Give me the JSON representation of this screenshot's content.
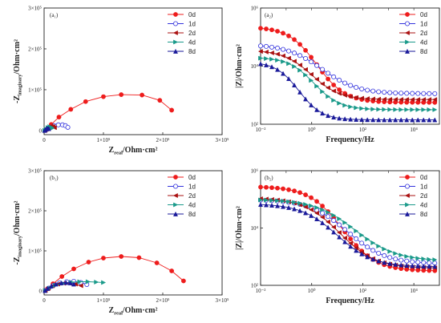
{
  "figure": {
    "series_colors": {
      "0d": "#ee1c1c",
      "1d": "#3333dd",
      "2d": "#aa1111",
      "4d": "#1a9a8a",
      "8d": "#1a1a9a"
    },
    "series_markers": {
      "0d": "circle-filled",
      "1d": "circle-open",
      "2d": "triangle-left",
      "4d": "triangle-right",
      "8d": "triangle-up"
    }
  },
  "chart_data": [
    {
      "id": "a1",
      "panel_label": "(a₁)",
      "type": "scatter",
      "kind": "nyquist",
      "xlabel_main": "Z",
      "xlabel_sub": "real",
      "xlabel_rest": "/Ohm·cm²",
      "ylabel_main": "-Z",
      "ylabel_sub": "imaginary",
      "ylabel_rest": "/Ohm·cm²",
      "xlim": [
        0,
        300000
      ],
      "ylim": [
        -10000,
        300000
      ],
      "xticks": [
        {
          "v": 0,
          "t": "0"
        },
        {
          "v": 100000,
          "t": "1×10⁵"
        },
        {
          "v": 200000,
          "t": "2×10⁵"
        },
        {
          "v": 300000,
          "t": "3×10⁵"
        }
      ],
      "yticks": [
        {
          "v": 0,
          "t": "0"
        },
        {
          "v": 100000,
          "t": "1×10⁵"
        },
        {
          "v": 200000,
          "t": "2×10⁵"
        },
        {
          "v": 300000,
          "t": "3×10⁵"
        }
      ],
      "legend": [
        "0d",
        "1d",
        "2d",
        "4d",
        "8d"
      ],
      "series": [
        {
          "name": "0d",
          "x": [
            1500,
            5000,
            12000,
            25000,
            45000,
            70000,
            100000,
            130000,
            165000,
            195000,
            215000
          ],
          "y": [
            800,
            4000,
            15000,
            33000,
            52000,
            71000,
            83000,
            88000,
            87000,
            74000,
            50000
          ]
        },
        {
          "name": "1d",
          "x": [
            2000,
            6000,
            11000,
            17000,
            24000,
            31000,
            36000,
            40000
          ],
          "y": [
            500,
            4000,
            8500,
            12000,
            14000,
            14000,
            12000,
            8000
          ]
        },
        {
          "name": "2d",
          "x": [
            1500,
            4000,
            8000,
            12000,
            15000,
            17500
          ],
          "y": [
            400,
            3500,
            8500,
            11000,
            10000,
            7000
          ]
        },
        {
          "name": "4d",
          "x": [
            1000,
            3500,
            6500,
            9500,
            12000,
            14000
          ],
          "y": [
            300,
            3500,
            7500,
            9500,
            8500,
            6000
          ]
        },
        {
          "name": "8d",
          "x": [
            800,
            2500,
            4500,
            6500,
            8000
          ],
          "y": [
            200,
            2500,
            5000,
            5500,
            4500
          ]
        }
      ]
    },
    {
      "id": "a2",
      "panel_label": "(a₂)",
      "type": "line",
      "kind": "bode",
      "xlabel": "Frequency/Hz",
      "ylabel": "|Z|/Ohm·cm²",
      "xscale": "log",
      "yscale": "log",
      "xlim_exp": [
        -2,
        5
      ],
      "ylim_exp": [
        2,
        6
      ],
      "xticks": [
        {
          "e": -2,
          "t": "10⁻²"
        },
        {
          "e": 0,
          "t": "10⁰"
        },
        {
          "e": 2,
          "t": "10²"
        },
        {
          "e": 4,
          "t": "10⁴"
        }
      ],
      "yticks": [
        {
          "e": 2,
          "t": "10²"
        },
        {
          "e": 4,
          "t": "10⁴"
        },
        {
          "e": 6,
          "t": "10⁶"
        }
      ],
      "legend": [
        "0d",
        "1d",
        "2d",
        "4d",
        "8d"
      ],
      "series": [
        {
          "name": "0d",
          "log_low": 5.35,
          "log_high": 2.75,
          "center": 0.2,
          "width": 0.55
        },
        {
          "name": "1d",
          "log_low": 4.75,
          "log_high": 3.05,
          "center": 0.4,
          "width": 0.7
        },
        {
          "name": "2d",
          "log_low": 4.55,
          "log_high": 2.85,
          "center": 0.0,
          "width": 0.55
        },
        {
          "name": "4d",
          "log_low": 4.3,
          "log_high": 2.5,
          "center": 0.1,
          "width": 0.5
        },
        {
          "name": "8d",
          "log_low": 4.15,
          "log_high": 2.15,
          "center": -0.5,
          "width": 0.45
        }
      ]
    },
    {
      "id": "b1",
      "panel_label": "(b₁)",
      "type": "scatter",
      "kind": "nyquist",
      "xlabel_main": "Z",
      "xlabel_sub": "real",
      "xlabel_rest": "/Ohm·cm²",
      "ylabel_main": "-Z",
      "ylabel_sub": "imaginary",
      "ylabel_rest": "/Ohm·cm²",
      "xlim": [
        0,
        300000
      ],
      "ylim": [
        -10000,
        300000
      ],
      "xticks": [
        {
          "v": 0,
          "t": "0"
        },
        {
          "v": 100000,
          "t": "1×10⁵"
        },
        {
          "v": 200000,
          "t": "2×10⁵"
        },
        {
          "v": 300000,
          "t": "3×10⁵"
        }
      ],
      "yticks": [
        {
          "v": 0,
          "t": "0"
        },
        {
          "v": 100000,
          "t": "1×10⁵"
        },
        {
          "v": 200000,
          "t": "2×10⁵"
        },
        {
          "v": 300000,
          "t": "3×10⁵"
        }
      ],
      "legend": [
        "0d",
        "1d",
        "2d",
        "4d",
        "8d"
      ],
      "series": [
        {
          "name": "0d",
          "x": [
            1500,
            6000,
            15000,
            30000,
            50000,
            75000,
            100000,
            130000,
            160000,
            190000,
            215000,
            235000
          ],
          "y": [
            1000,
            6000,
            18000,
            36000,
            55000,
            72000,
            82000,
            86000,
            83000,
            70000,
            50000,
            25000
          ]
        },
        {
          "name": "1d",
          "x": [
            2000,
            8000,
            16000,
            26000,
            38000,
            50000,
            62000,
            72000
          ],
          "y": [
            1000,
            7000,
            14000,
            20000,
            23000,
            24000,
            21000,
            16000
          ]
        },
        {
          "name": "2d",
          "x": [
            2000,
            7000,
            14000,
            23000,
            33000,
            43000,
            53000,
            62000
          ],
          "y": [
            1000,
            6500,
            12500,
            17000,
            19000,
            19000,
            17000,
            13000
          ]
        },
        {
          "name": "4d",
          "x": [
            2000,
            9000,
            19000,
            32000,
            46000,
            60000,
            74000,
            88000,
            100000
          ],
          "y": [
            1000,
            7000,
            14000,
            19000,
            22000,
            23000,
            23000,
            22000,
            21000
          ]
        },
        {
          "name": "8d",
          "x": [
            1500,
            6000,
            12000,
            20000,
            29000,
            37000,
            44000,
            50000
          ],
          "y": [
            1000,
            6000,
            12000,
            17000,
            20000,
            21000,
            20000,
            17000
          ]
        }
      ]
    },
    {
      "id": "b2",
      "panel_label": "(b₂)",
      "type": "line",
      "kind": "bode",
      "xlabel": "Frequency/Hz",
      "ylabel": "|Z|/Ohm·cm²",
      "xscale": "log",
      "yscale": "log",
      "xlim_exp": [
        -2,
        5
      ],
      "ylim_exp": [
        2,
        6
      ],
      "xticks": [
        {
          "e": -2,
          "t": "10⁻²"
        },
        {
          "e": 0,
          "t": "10⁰"
        },
        {
          "e": 2,
          "t": "10²"
        },
        {
          "e": 4,
          "t": "10⁴"
        }
      ],
      "yticks": [
        {
          "e": 2,
          "t": "10²"
        },
        {
          "e": 4,
          "t": "10⁴"
        },
        {
          "e": 6,
          "t": "10⁶"
        }
      ],
      "legend": [
        "0d",
        "1d",
        "2d",
        "4d",
        "8d"
      ],
      "series": [
        {
          "name": "0d",
          "log_low": 5.45,
          "log_high": 2.5,
          "center": 1.2,
          "width": 0.65
        },
        {
          "name": "1d",
          "log_low": 5.0,
          "log_high": 2.75,
          "center": 1.4,
          "width": 0.75
        },
        {
          "name": "2d",
          "log_low": 5.05,
          "log_high": 2.6,
          "center": 1.1,
          "width": 0.7
        },
        {
          "name": "4d",
          "log_low": 5.0,
          "log_high": 2.85,
          "center": 1.7,
          "width": 0.8
        },
        {
          "name": "8d",
          "log_low": 4.85,
          "log_high": 2.65,
          "center": 1.0,
          "width": 0.7
        }
      ]
    }
  ]
}
